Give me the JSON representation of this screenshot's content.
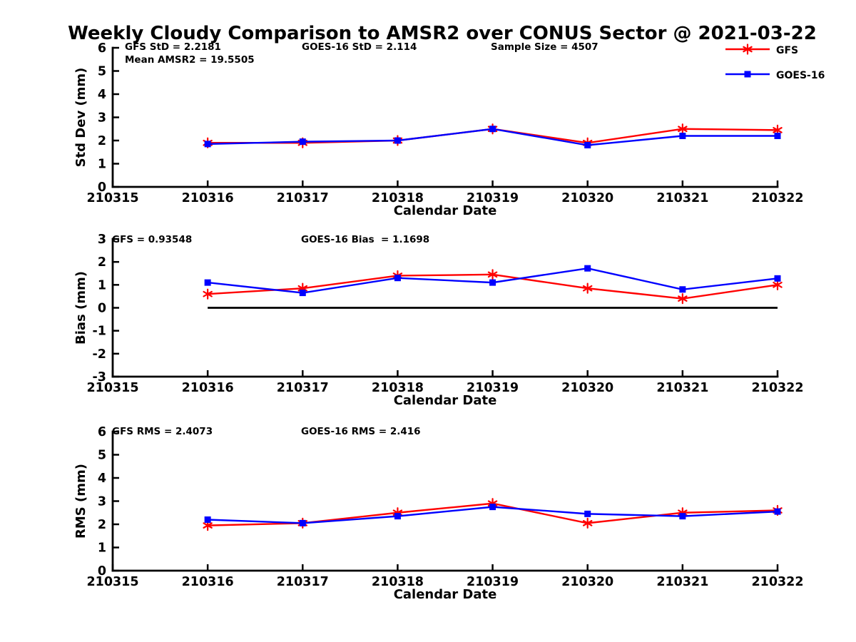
{
  "title": "Weekly Cloudy Comparison to AMSR2 over CONUS Sector @ 2021-03-22",
  "colors": {
    "gfs": "#ff0000",
    "goes16": "#0000ff",
    "axis": "#000000",
    "background": "#ffffff"
  },
  "legend": {
    "position": "top-right",
    "items": [
      {
        "label": "GFS",
        "color": "#ff0000",
        "marker": "asterisk"
      },
      {
        "label": "GOES-16",
        "color": "#0000ff",
        "marker": "square"
      }
    ]
  },
  "x_axis": {
    "label": "Calendar Date",
    "tick_labels": [
      "210315",
      "210316",
      "210317",
      "210318",
      "210319",
      "210320",
      "210321",
      "210322"
    ]
  },
  "chart_data": [
    {
      "type": "line",
      "name": "std_dev",
      "ylabel": "Std Dev (mm)",
      "xlabel": "Calendar Date",
      "ylim": [
        0,
        6
      ],
      "yticks": [
        0,
        1,
        2,
        3,
        4,
        5,
        6
      ],
      "grid": false,
      "x": [
        "210316",
        "210317",
        "210318",
        "210319",
        "210320",
        "210321",
        "210322"
      ],
      "series": [
        {
          "name": "GFS",
          "color": "#ff0000",
          "marker": "asterisk",
          "values": [
            1.9,
            1.9,
            2.0,
            2.5,
            1.9,
            2.5,
            2.45
          ]
        },
        {
          "name": "GOES-16",
          "color": "#0000ff",
          "marker": "square",
          "values": [
            1.85,
            1.95,
            2.0,
            2.5,
            1.8,
            2.2,
            2.2
          ]
        }
      ],
      "annotations": [
        "GFS StD = 2.2181",
        "Mean AMSR2 = 19.5505",
        "GOES-16 StD = 2.114",
        "Sample Size = 4507"
      ]
    },
    {
      "type": "line",
      "name": "bias",
      "ylabel": "Bias (mm)",
      "xlabel": "Calendar Date",
      "ylim": [
        -3,
        3
      ],
      "yticks": [
        -3,
        -2,
        -1,
        0,
        1,
        2,
        3
      ],
      "grid": false,
      "zero_line": true,
      "x": [
        "210316",
        "210317",
        "210318",
        "210319",
        "210320",
        "210321",
        "210322"
      ],
      "series": [
        {
          "name": "GFS",
          "color": "#ff0000",
          "marker": "asterisk",
          "values": [
            0.6,
            0.85,
            1.4,
            1.45,
            0.85,
            0.4,
            1.0
          ]
        },
        {
          "name": "GOES-16",
          "color": "#0000ff",
          "marker": "square",
          "values": [
            1.1,
            0.65,
            1.3,
            1.1,
            1.72,
            0.8,
            1.28
          ]
        }
      ],
      "annotations": [
        "GFS = 0.93548",
        "GOES-16 Bias  = 1.1698"
      ]
    },
    {
      "type": "line",
      "name": "rms",
      "ylabel": "RMS (mm)",
      "xlabel": "Calendar Date",
      "ylim": [
        0,
        6
      ],
      "yticks": [
        0,
        1,
        2,
        3,
        4,
        5,
        6
      ],
      "grid": false,
      "x": [
        "210316",
        "210317",
        "210318",
        "210319",
        "210320",
        "210321",
        "210322"
      ],
      "series": [
        {
          "name": "GFS",
          "color": "#ff0000",
          "marker": "asterisk",
          "values": [
            1.95,
            2.05,
            2.5,
            2.9,
            2.05,
            2.5,
            2.6
          ]
        },
        {
          "name": "GOES-16",
          "color": "#0000ff",
          "marker": "square",
          "values": [
            2.2,
            2.05,
            2.35,
            2.75,
            2.45,
            2.35,
            2.55
          ]
        }
      ],
      "annotations": [
        "GFS RMS = 2.4073",
        "GOES-16 RMS = 2.416"
      ]
    }
  ]
}
